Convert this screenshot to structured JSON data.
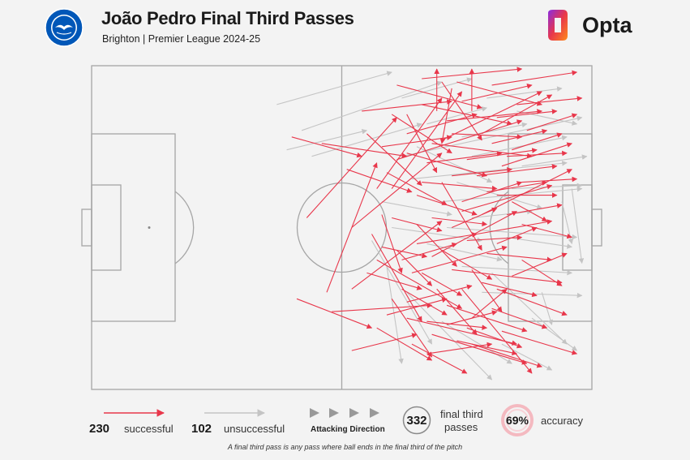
{
  "header": {
    "title": "João Pedro Final Third Passes",
    "subtitle": "Brighton | Premier League 2024-25",
    "brand": "Opta",
    "crest_icon": "brighton-crest-icon",
    "brand_icon": "opta-logo-icon"
  },
  "colors": {
    "successful": "#e8374b",
    "unsuccessful": "#c4c4c4",
    "pitch_lines": "#a6a6a6",
    "background": "#f3f3f3"
  },
  "legend": {
    "successful_count": "230",
    "successful_label": "successful",
    "unsuccessful_count": "102",
    "unsuccessful_label": "unsuccessful",
    "direction_label": "Attacking Direction",
    "total_count": "332",
    "total_label_line1": "final third",
    "total_label_line2": "passes",
    "accuracy_value": "69%",
    "accuracy_label": "accuracy"
  },
  "footnote": "A final third pass is any pass where ball ends in the final third of the pitch",
  "chart_data": {
    "type": "scatter",
    "xlim": [
      0,
      100
    ],
    "ylim": [
      0,
      100
    ],
    "attacking_direction": "left-to-right",
    "series": [
      {
        "name": "successful",
        "count": 230,
        "passes": [
          [
            40,
            78,
            54,
            72
          ],
          [
            43,
            53,
            61,
            84
          ],
          [
            47,
            30,
            57,
            70
          ],
          [
            52,
            50,
            70,
            73
          ],
          [
            46,
            76,
            63,
            72
          ],
          [
            57,
            62,
            70,
            90
          ],
          [
            60,
            62,
            74,
            92
          ],
          [
            70,
            77,
            90,
            92
          ],
          [
            61,
            71,
            86,
            83
          ],
          [
            78,
            79,
            92,
            91
          ],
          [
            80,
            94,
            97,
            98
          ],
          [
            73,
            95,
            90,
            88
          ],
          [
            66,
            88,
            84,
            82
          ],
          [
            60,
            85,
            72,
            73
          ],
          [
            63,
            73,
            79,
            66
          ],
          [
            66,
            64,
            81,
            62
          ],
          [
            70,
            64,
            78,
            43
          ],
          [
            65,
            51,
            73,
            38
          ],
          [
            61,
            43,
            68,
            32
          ],
          [
            58,
            54,
            62,
            36
          ],
          [
            69,
            86,
            69,
            99
          ],
          [
            76,
            86,
            76,
            99
          ],
          [
            72,
            93,
            70,
            76
          ],
          [
            84,
            74,
            94,
            79
          ],
          [
            85,
            88,
            98,
            90
          ],
          [
            74,
            55,
            92,
            63
          ],
          [
            68,
            41,
            85,
            55
          ],
          [
            64,
            36,
            83,
            44
          ],
          [
            55,
            79,
            66,
            63
          ],
          [
            52,
            31,
            70,
            52
          ],
          [
            41,
            28,
            56,
            19
          ],
          [
            48,
            24,
            68,
            26
          ],
          [
            57,
            40,
            74,
            25
          ],
          [
            63,
            22,
            85,
            14
          ],
          [
            71,
            26,
            87,
            18
          ],
          [
            72,
            37,
            94,
            33
          ],
          [
            76,
            37,
            82,
            24
          ],
          [
            81,
            31,
            95,
            23
          ],
          [
            68,
            17,
            87,
            8
          ],
          [
            75,
            19,
            86,
            13
          ],
          [
            56,
            48,
            66,
            21
          ],
          [
            60,
            28,
            68,
            10
          ],
          [
            52,
            12,
            65,
            17
          ],
          [
            67,
            11,
            80,
            14
          ],
          [
            74,
            31,
            88,
            5
          ],
          [
            76,
            14,
            90,
            7
          ],
          [
            82,
            18,
            97,
            11
          ],
          [
            70,
            43,
            80,
            34
          ],
          [
            86,
            51,
            96,
            47
          ],
          [
            86,
            40,
            94,
            32
          ],
          [
            59,
            67,
            71,
            57
          ],
          [
            63,
            85,
            69,
            67
          ],
          [
            70,
            95,
            78,
            77
          ],
          [
            74,
            58,
            86,
            64
          ],
          [
            77,
            66,
            93,
            69
          ],
          [
            77,
            48,
            92,
            52
          ],
          [
            81,
            60,
            93,
            60
          ],
          [
            82,
            69,
            96,
            76
          ],
          [
            87,
            80,
            97,
            85
          ],
          [
            68,
            76,
            88,
            72
          ],
          [
            65,
            60,
            77,
            54
          ],
          [
            60,
            53,
            70,
            49
          ],
          [
            58,
            75,
            72,
            78
          ],
          [
            63,
            79,
            77,
            85
          ],
          [
            67,
            70,
            82,
            73
          ],
          [
            71,
            83,
            90,
            86
          ],
          [
            72,
            50,
            81,
            56
          ],
          [
            78,
            54,
            96,
            68
          ],
          [
            79,
            42,
            92,
            40
          ],
          [
            75,
            46,
            86,
            47
          ],
          [
            66,
            36,
            74,
            29
          ],
          [
            69,
            31,
            77,
            17
          ],
          [
            62,
            31,
            71,
            23
          ],
          [
            57,
            19,
            68,
            9
          ],
          [
            64,
            14,
            75,
            5
          ],
          [
            71,
            20,
            81,
            24
          ],
          [
            80,
            25,
            91,
            19
          ],
          [
            76,
            22,
            83,
            31
          ],
          [
            84,
            35,
            95,
            42
          ],
          [
            84,
            58,
            91,
            52
          ],
          [
            51,
            68,
            64,
            61
          ],
          [
            54,
            86,
            72,
            89
          ],
          [
            61,
            94,
            78,
            87
          ],
          [
            66,
            96,
            86,
            99
          ],
          [
            72,
            79,
            86,
            78
          ],
          [
            75,
            71,
            89,
            74
          ],
          [
            74,
            89,
            88,
            94
          ],
          [
            81,
            84,
            93,
            86
          ],
          [
            83,
            72,
            95,
            73
          ],
          [
            86,
            64,
            97,
            65
          ],
          [
            58,
            44,
            67,
            41
          ],
          [
            62,
            40,
            73,
            45
          ],
          [
            65,
            45,
            77,
            48
          ],
          [
            68,
            53,
            79,
            51
          ],
          [
            72,
            66,
            84,
            68
          ],
          [
            55,
            36,
            66,
            31
          ],
          [
            59,
            23,
            71,
            28
          ],
          [
            63,
            27,
            76,
            32
          ],
          [
            67,
            21,
            79,
            19
          ],
          [
            73,
            15,
            85,
            11
          ],
          [
            78,
            33,
            89,
            29
          ],
          [
            81,
            45,
            89,
            50
          ],
          [
            83,
            54,
            94,
            57
          ],
          [
            79,
            61,
            91,
            64
          ],
          [
            80,
            76,
            91,
            80
          ]
        ]
      },
      {
        "name": "unsuccessful",
        "count": 102,
        "passes": [
          [
            37,
            88,
            60,
            98
          ],
          [
            42,
            80,
            70,
            95
          ],
          [
            44,
            72,
            66,
            82
          ],
          [
            39,
            74,
            55,
            80
          ],
          [
            62,
            72,
            98,
            84
          ],
          [
            64,
            65,
            95,
            70
          ],
          [
            70,
            58,
            98,
            62
          ],
          [
            71,
            50,
            97,
            47
          ],
          [
            74,
            38,
            96,
            36
          ],
          [
            78,
            30,
            98,
            29
          ],
          [
            56,
            46,
            68,
            14
          ],
          [
            59,
            38,
            62,
            8
          ],
          [
            63,
            30,
            80,
            3
          ],
          [
            70,
            21,
            84,
            8
          ],
          [
            80,
            36,
            95,
            14
          ],
          [
            65,
            75,
            80,
            64
          ],
          [
            58,
            58,
            72,
            54
          ],
          [
            73,
            64,
            90,
            56
          ],
          [
            76,
            72,
            95,
            78
          ],
          [
            84,
            62,
            98,
            63
          ],
          [
            67,
            45,
            82,
            40
          ],
          [
            60,
            50,
            78,
            46
          ],
          [
            76,
            53,
            88,
            55
          ],
          [
            83,
            47,
            96,
            44
          ],
          [
            86,
            69,
            99,
            72
          ],
          [
            85,
            86,
            97,
            82
          ],
          [
            74,
            78,
            87,
            82
          ],
          [
            67,
            82,
            79,
            87
          ],
          [
            79,
            90,
            94,
            93
          ],
          [
            62,
            90,
            76,
            96
          ],
          [
            94,
            58,
            96,
            45
          ],
          [
            96,
            62,
            98,
            39
          ],
          [
            90,
            30,
            92,
            20
          ],
          [
            88,
            22,
            97,
            12
          ],
          [
            82,
            14,
            92,
            6
          ]
        ]
      }
    ]
  }
}
